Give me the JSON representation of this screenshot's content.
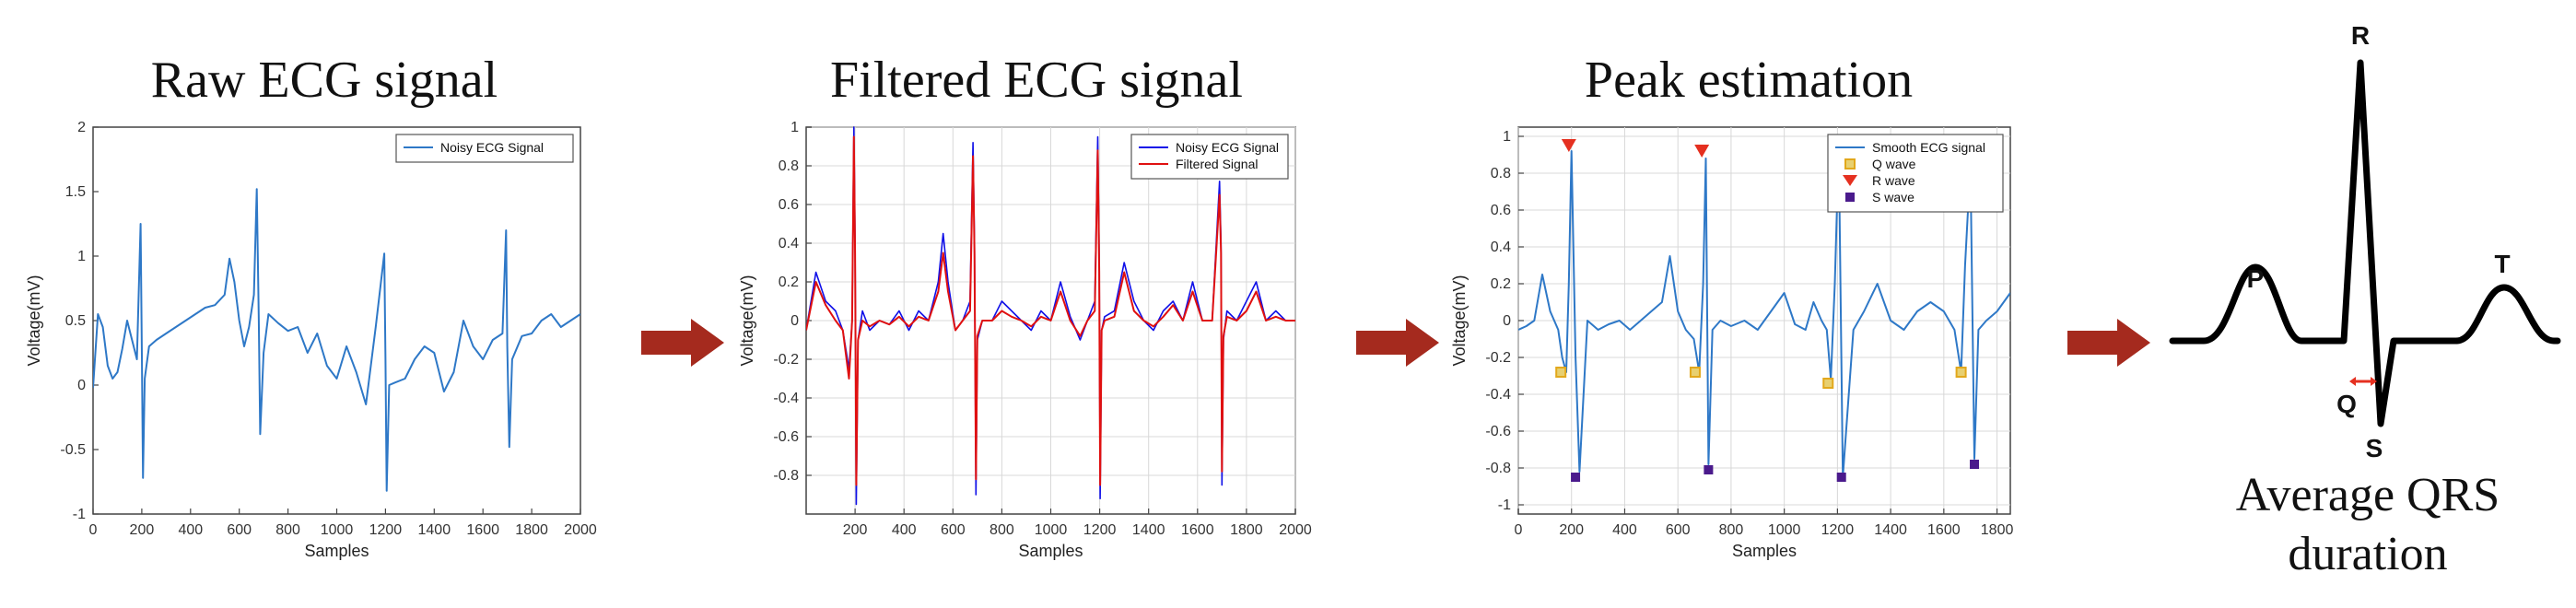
{
  "colors": {
    "blue": "#2E78C7",
    "pure_blue": "#1010E8",
    "red": "#E01010",
    "arrow": "#A52A1E",
    "grid": "#D8D8D8",
    "axes": "#444444",
    "q_marker": "#E2A81C",
    "r_marker": "#E53020",
    "s_marker": "#4A1A8C",
    "qrs_arrow": "#E53020"
  },
  "panels": {
    "raw": {
      "title": "Raw ECG signal"
    },
    "filtered": {
      "title": "Filtered ECG signal"
    },
    "peak": {
      "title": "Peak estimation"
    },
    "diagram": {
      "title_line1": "Average QRS",
      "title_line2": "duration",
      "labels": {
        "P": "P",
        "Q": "Q",
        "R": "R",
        "S": "S",
        "T": "T"
      }
    }
  },
  "chart_data": [
    {
      "id": "raw",
      "type": "line",
      "xlabel": "Samples",
      "ylabel": "Voltage(mV)",
      "xlim": [
        0,
        2000
      ],
      "ylim": [
        -1,
        2
      ],
      "xticks": [
        0,
        200,
        400,
        600,
        800,
        1000,
        1200,
        1400,
        1600,
        1800,
        2000
      ],
      "yticks": [
        -1,
        -0.5,
        0,
        0.5,
        1,
        1.5,
        2
      ],
      "ytick_labels": [
        "-1",
        "-0.5",
        "0",
        "0.5",
        "1",
        "1.5",
        "2"
      ],
      "grid": false,
      "legend": "top-right",
      "series": [
        {
          "name": "Noisy ECG Signal",
          "x": [
            0,
            20,
            40,
            60,
            80,
            100,
            120,
            140,
            160,
            180,
            195,
            200,
            205,
            212,
            230,
            260,
            300,
            340,
            380,
            420,
            460,
            500,
            540,
            560,
            580,
            600,
            620,
            640,
            660,
            672,
            680,
            686,
            700,
            720,
            760,
            800,
            840,
            880,
            920,
            960,
            1000,
            1040,
            1080,
            1120,
            1160,
            1195,
            1200,
            1205,
            1215,
            1240,
            1280,
            1320,
            1360,
            1400,
            1440,
            1480,
            1520,
            1560,
            1600,
            1640,
            1680,
            1695,
            1700,
            1708,
            1720,
            1760,
            1800,
            1840,
            1880,
            1920,
            1960,
            2000
          ],
          "y": [
            -0.02,
            0.55,
            0.45,
            0.15,
            0.05,
            0.1,
            0.28,
            0.5,
            0.35,
            0.2,
            1.25,
            0.3,
            -0.72,
            0.05,
            0.3,
            0.35,
            0.4,
            0.45,
            0.5,
            0.55,
            0.6,
            0.62,
            0.7,
            0.98,
            0.8,
            0.5,
            0.3,
            0.45,
            0.7,
            1.52,
            0.5,
            -0.38,
            0.25,
            0.55,
            0.48,
            0.42,
            0.45,
            0.25,
            0.4,
            0.15,
            0.05,
            0.3,
            0.1,
            -0.15,
            0.45,
            1.02,
            0.2,
            -0.82,
            0.0,
            0.02,
            0.05,
            0.2,
            0.3,
            0.25,
            -0.05,
            0.1,
            0.5,
            0.3,
            0.2,
            0.35,
            0.4,
            1.2,
            0.3,
            -0.48,
            0.2,
            0.38,
            0.4,
            0.5,
            0.55,
            0.45,
            0.5,
            0.55
          ]
        }
      ]
    },
    {
      "id": "filtered",
      "type": "line",
      "xlabel": "Samples",
      "ylabel": "Voltage(mV)",
      "xlim": [
        0,
        2000
      ],
      "ylim": [
        -1,
        1
      ],
      "xticks": [
        200,
        400,
        600,
        800,
        1000,
        1200,
        1400,
        1600,
        1800,
        2000
      ],
      "yticks": [
        -0.8,
        -0.6,
        -0.4,
        -0.2,
        0,
        0.2,
        0.4,
        0.6,
        0.8,
        1
      ],
      "ytick_labels": [
        "-0.8",
        "-0.6",
        "-0.4",
        "-0.2",
        "0",
        "0.2",
        "0.4",
        "0.6",
        "0.8",
        "1"
      ],
      "grid": true,
      "legend": "top-right",
      "series": [
        {
          "name": "Noisy ECG Signal",
          "x": [
            0,
            40,
            80,
            120,
            150,
            175,
            188,
            195,
            200,
            205,
            212,
            230,
            260,
            300,
            340,
            380,
            420,
            460,
            500,
            540,
            560,
            580,
            610,
            640,
            670,
            682,
            688,
            694,
            700,
            720,
            760,
            800,
            840,
            880,
            920,
            960,
            1000,
            1040,
            1080,
            1120,
            1150,
            1180,
            1192,
            1198,
            1202,
            1208,
            1220,
            1260,
            1300,
            1340,
            1380,
            1420,
            1460,
            1500,
            1540,
            1580,
            1620,
            1660,
            1690,
            1696,
            1700,
            1706,
            1720,
            1760,
            1800,
            1840,
            1880,
            1920,
            1960,
            2000
          ],
          "y": [
            -0.05,
            0.25,
            0.1,
            0.05,
            -0.05,
            -0.25,
            0.0,
            1.0,
            0.4,
            -0.95,
            -0.1,
            0.05,
            -0.05,
            0.0,
            -0.02,
            0.05,
            -0.05,
            0.05,
            0.0,
            0.2,
            0.45,
            0.2,
            -0.05,
            0.0,
            0.1,
            0.92,
            0.4,
            -0.9,
            -0.1,
            0.0,
            0.0,
            0.1,
            0.05,
            0.0,
            -0.05,
            0.05,
            0.0,
            0.2,
            0.02,
            -0.1,
            0.0,
            0.1,
            0.95,
            0.3,
            -0.92,
            -0.05,
            0.02,
            0.05,
            0.3,
            0.1,
            0.0,
            -0.05,
            0.05,
            0.1,
            0.0,
            0.2,
            0.0,
            0.0,
            0.72,
            0.4,
            -0.85,
            -0.1,
            0.05,
            0.0,
            0.1,
            0.2,
            0.0,
            0.05,
            0.0,
            0.0
          ]
        },
        {
          "name": "Filtered Signal",
          "x": [
            0,
            40,
            80,
            120,
            150,
            175,
            188,
            195,
            200,
            205,
            212,
            230,
            260,
            300,
            340,
            380,
            420,
            460,
            500,
            540,
            560,
            580,
            610,
            640,
            670,
            682,
            688,
            694,
            700,
            720,
            760,
            800,
            840,
            880,
            920,
            960,
            1000,
            1040,
            1080,
            1120,
            1150,
            1180,
            1192,
            1198,
            1202,
            1208,
            1220,
            1260,
            1300,
            1340,
            1380,
            1420,
            1460,
            1500,
            1540,
            1580,
            1620,
            1660,
            1690,
            1696,
            1700,
            1706,
            1720,
            1760,
            1800,
            1840,
            1880,
            1920,
            1960,
            2000
          ],
          "y": [
            -0.05,
            0.2,
            0.08,
            0.0,
            -0.05,
            -0.3,
            0.0,
            0.95,
            0.35,
            -0.85,
            -0.1,
            0.0,
            -0.03,
            0.0,
            -0.02,
            0.02,
            -0.03,
            0.02,
            0.0,
            0.15,
            0.35,
            0.15,
            -0.05,
            0.0,
            0.05,
            0.85,
            0.35,
            -0.82,
            -0.08,
            0.0,
            0.0,
            0.05,
            0.02,
            0.0,
            -0.03,
            0.02,
            0.0,
            0.15,
            0.0,
            -0.08,
            0.0,
            0.05,
            0.88,
            0.25,
            -0.85,
            -0.05,
            0.0,
            0.02,
            0.25,
            0.05,
            0.0,
            -0.03,
            0.02,
            0.08,
            0.0,
            0.15,
            0.0,
            0.0,
            0.65,
            0.35,
            -0.78,
            -0.08,
            0.02,
            0.0,
            0.05,
            0.15,
            0.0,
            0.02,
            0.0,
            0.0
          ]
        }
      ]
    },
    {
      "id": "peak",
      "type": "line",
      "xlabel": "Samples",
      "ylabel": "Voltage(mV)",
      "xlim": [
        0,
        1850
      ],
      "ylim": [
        -1.05,
        1.05
      ],
      "xticks": [
        0,
        200,
        400,
        600,
        800,
        1000,
        1200,
        1400,
        1600,
        1800
      ],
      "yticks": [
        -1,
        -0.8,
        -0.6,
        -0.4,
        -0.2,
        0,
        0.2,
        0.4,
        0.6,
        0.8,
        1
      ],
      "ytick_labels": [
        "-1",
        "-0.8",
        "-0.6",
        "-0.4",
        "-0.2",
        "0",
        "0.2",
        "0.4",
        "0.6",
        "0.8",
        "1"
      ],
      "grid": true,
      "legend": "top-right",
      "series": [
        {
          "name": "Smooth ECG signal",
          "x": [
            0,
            30,
            60,
            90,
            120,
            150,
            165,
            180,
            190,
            200,
            215,
            230,
            260,
            300,
            340,
            380,
            420,
            460,
            500,
            540,
            570,
            600,
            630,
            660,
            680,
            695,
            705,
            715,
            730,
            760,
            800,
            850,
            900,
            950,
            1000,
            1040,
            1080,
            1110,
            1140,
            1160,
            1175,
            1190,
            1205,
            1220,
            1260,
            1300,
            1350,
            1400,
            1450,
            1500,
            1550,
            1600,
            1640,
            1665,
            1680,
            1700,
            1715,
            1730,
            1760,
            1800,
            1850
          ],
          "y": [
            -0.05,
            -0.03,
            0.0,
            0.25,
            0.05,
            -0.05,
            -0.2,
            -0.28,
            0.2,
            0.92,
            -0.2,
            -0.82,
            0.0,
            -0.05,
            -0.02,
            0.0,
            -0.05,
            0.0,
            0.05,
            0.1,
            0.35,
            0.05,
            -0.05,
            -0.1,
            -0.28,
            0.2,
            0.88,
            -0.78,
            -0.05,
            0.0,
            -0.03,
            0.0,
            -0.05,
            0.05,
            0.15,
            -0.02,
            -0.05,
            0.1,
            0.0,
            -0.05,
            -0.32,
            0.2,
            0.95,
            -0.85,
            -0.05,
            0.05,
            0.2,
            0.0,
            -0.05,
            0.05,
            0.1,
            0.05,
            -0.05,
            -0.28,
            0.3,
            0.85,
            -0.75,
            -0.05,
            0.0,
            0.05,
            0.15
          ]
        },
        {
          "name": "Q wave",
          "marker": "square",
          "x": [
            160,
            665,
            1165,
            1665
          ],
          "y": [
            -0.28,
            -0.28,
            -0.34,
            -0.28
          ]
        },
        {
          "name": "R wave",
          "marker": "triangle-down",
          "x": [
            190,
            690,
            1190,
            1690
          ],
          "y": [
            0.95,
            0.92,
            0.96,
            0.93
          ]
        },
        {
          "name": "S wave",
          "marker": "square",
          "x": [
            215,
            715,
            1215,
            1715
          ],
          "y": [
            -0.85,
            -0.81,
            -0.85,
            -0.78
          ]
        }
      ]
    }
  ]
}
